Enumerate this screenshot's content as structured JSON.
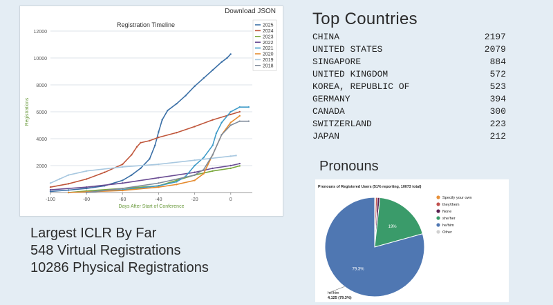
{
  "timeline": {
    "download_label": "Download JSON",
    "chart_data": {
      "type": "line",
      "title": "Registration Timeline",
      "xlabel": "Days After Start of Conference",
      "ylabel": "Registrations",
      "xlim": [
        -100,
        12
      ],
      "ylim": [
        0,
        12000
      ],
      "xticks": [
        -100,
        -80,
        -60,
        -40,
        -20,
        0
      ],
      "yticks": [
        2000,
        4000,
        6000,
        8000,
        10000,
        12000
      ],
      "grid": "horizontal",
      "legend_position": "top-right",
      "series": [
        {
          "name": "2025",
          "color": "#3a6fa6",
          "points": [
            [
              -100,
              80
            ],
            [
              -90,
              180
            ],
            [
              -80,
              300
            ],
            [
              -70,
              500
            ],
            [
              -60,
              900
            ],
            [
              -55,
              1300
            ],
            [
              -50,
              1800
            ],
            [
              -45,
              2500
            ],
            [
              -42,
              3500
            ],
            [
              -40,
              4500
            ],
            [
              -38,
              5400
            ],
            [
              -35,
              6100
            ],
            [
              -30,
              6600
            ],
            [
              -25,
              7200
            ],
            [
              -20,
              7900
            ],
            [
              -15,
              8500
            ],
            [
              -10,
              9100
            ],
            [
              -5,
              9700
            ],
            [
              -2,
              10000
            ],
            [
              0,
              10286
            ]
          ]
        },
        {
          "name": "2024",
          "color": "#c0573c",
          "points": [
            [
              -100,
              400
            ],
            [
              -90,
              650
            ],
            [
              -80,
              1000
            ],
            [
              -70,
              1500
            ],
            [
              -60,
              2100
            ],
            [
              -55,
              2800
            ],
            [
              -52,
              3400
            ],
            [
              -50,
              3700
            ],
            [
              -45,
              3850
            ],
            [
              -40,
              4100
            ],
            [
              -30,
              4450
            ],
            [
              -20,
              4900
            ],
            [
              -10,
              5400
            ],
            [
              0,
              5800
            ],
            [
              5,
              6000
            ]
          ]
        },
        {
          "name": "2023",
          "color": "#7aa83c",
          "points": [
            [
              -90,
              0
            ],
            [
              -80,
              120
            ],
            [
              -60,
              300
            ],
            [
              -40,
              500
            ],
            [
              -30,
              900
            ],
            [
              -20,
              1300
            ],
            [
              -10,
              1600
            ],
            [
              0,
              1800
            ],
            [
              5,
              1980
            ]
          ]
        },
        {
          "name": "2022",
          "color": "#6a4c93",
          "points": [
            [
              -100,
              200
            ],
            [
              -80,
              400
            ],
            [
              -60,
              700
            ],
            [
              -40,
              1100
            ],
            [
              -20,
              1500
            ],
            [
              -10,
              1800
            ],
            [
              0,
              2000
            ],
            [
              5,
              2150
            ]
          ]
        },
        {
          "name": "2021",
          "color": "#3e9bc8",
          "points": [
            [
              -90,
              0
            ],
            [
              -80,
              50
            ],
            [
              -60,
              200
            ],
            [
              -40,
              500
            ],
            [
              -30,
              800
            ],
            [
              -25,
              1200
            ],
            [
              -20,
              2000
            ],
            [
              -15,
              2600
            ],
            [
              -10,
              3500
            ],
            [
              -8,
              4400
            ],
            [
              -5,
              5200
            ],
            [
              0,
              6000
            ],
            [
              5,
              6350
            ],
            [
              10,
              6350
            ]
          ]
        },
        {
          "name": "2020",
          "color": "#e58a2e",
          "points": [
            [
              -90,
              0
            ],
            [
              -80,
              50
            ],
            [
              -60,
              150
            ],
            [
              -40,
              400
            ],
            [
              -30,
              600
            ],
            [
              -20,
              900
            ],
            [
              -15,
              1400
            ],
            [
              -10,
              2800
            ],
            [
              -5,
              4300
            ],
            [
              0,
              5200
            ],
            [
              5,
              5700
            ]
          ]
        },
        {
          "name": "2019",
          "color": "#a8c8e0",
          "points": [
            [
              -100,
              700
            ],
            [
              -95,
              1000
            ],
            [
              -90,
              1300
            ],
            [
              -80,
              1600
            ],
            [
              -60,
              1900
            ],
            [
              -40,
              2100
            ],
            [
              -20,
              2400
            ],
            [
              0,
              2700
            ],
            [
              3,
              2750
            ]
          ]
        },
        {
          "name": "2018",
          "color": "#7f8b9a",
          "points": [
            [
              -80,
              0
            ],
            [
              -60,
              300
            ],
            [
              -40,
              700
            ],
            [
              -20,
              1300
            ],
            [
              -15,
              1700
            ],
            [
              -10,
              2800
            ],
            [
              -5,
              4300
            ],
            [
              0,
              5000
            ],
            [
              5,
              5300
            ],
            [
              10,
              5300
            ]
          ]
        }
      ]
    }
  },
  "countries": {
    "title": "Top Countries",
    "rows": [
      {
        "name": "CHINA",
        "count": "2197"
      },
      {
        "name": "UNITED STATES",
        "count": "2079"
      },
      {
        "name": "SINGAPORE",
        "count": "884"
      },
      {
        "name": "UNITED KINGDOM",
        "count": "572"
      },
      {
        "name": "KOREA, REPUBLIC OF",
        "count": "523"
      },
      {
        "name": "GERMANY",
        "count": "394"
      },
      {
        "name": "CANADA",
        "count": "300"
      },
      {
        "name": "SWITZERLAND",
        "count": "223"
      },
      {
        "name": "JAPAN",
        "count": "212"
      }
    ]
  },
  "pronouns": {
    "title": "Pronouns",
    "chart_data": {
      "type": "pie",
      "title": "Pronouns of Registered Users (51% reporting, 10073 total)",
      "legend_position": "right",
      "slices": [
        {
          "label": "Specify your own",
          "value": 0.3,
          "color": "#e8913a"
        },
        {
          "label": "they/them",
          "value": 0.6,
          "color": "#c0504d"
        },
        {
          "label": "None",
          "value": 0.8,
          "color": "#5a1f4f"
        },
        {
          "label": "she/her",
          "value": 19.0,
          "color": "#3a9b6a"
        },
        {
          "label": "he/him",
          "value": 79.3,
          "color": "#4f77b2"
        },
        {
          "label": "Other",
          "value": 0.0,
          "color": "#d0d0d0"
        }
      ],
      "data_labels": [
        {
          "slice": "she/her",
          "text": "19%"
        },
        {
          "slice": "he/him",
          "text": "79.3%"
        }
      ],
      "callout": {
        "label": "he/him",
        "text": "4,125 (79.3%)"
      }
    }
  },
  "stats": {
    "line1": "Largest ICLR By Far",
    "line2": "548 Virtual Registrations",
    "line3": "10286 Physical Registrations"
  }
}
